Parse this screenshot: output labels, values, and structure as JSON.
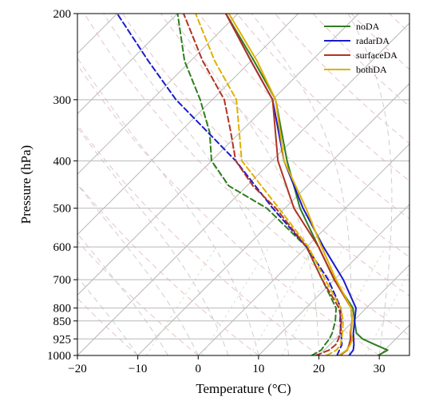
{
  "chart_data": {
    "type": "line",
    "subtype": "skew-T log-p diagram",
    "xlabel": "Temperature (°C)",
    "ylabel": "Pressure (hPa)",
    "x_ticks": [
      -20,
      -10,
      0,
      10,
      20,
      30
    ],
    "y_ticks": [
      200,
      300,
      400,
      500,
      600,
      700,
      800,
      850,
      925,
      1000
    ],
    "xlim": [
      -20,
      35
    ],
    "ylim": [
      1000,
      200
    ],
    "y_scale": "log",
    "skew": "isotherms slanted 45 degrees",
    "grid": true,
    "legend_position": "top-right",
    "background_lines": [
      "isotherms",
      "dry adiabats",
      "moist adiabats",
      "mixing ratio lines"
    ],
    "line_styles": {
      "temperature": "solid",
      "dewpoint": "dashed"
    },
    "series": [
      {
        "name": "noDA",
        "color": "#2f7d1f",
        "temperature": [
          [
            1000,
            29.8
          ],
          [
            975,
            30.5
          ],
          [
            950,
            27.5
          ],
          [
            925,
            24.5
          ],
          [
            900,
            22.5
          ],
          [
            850,
            20.2
          ],
          [
            800,
            17.8
          ],
          [
            700,
            10.0
          ],
          [
            600,
            2.0
          ],
          [
            500,
            -7.5
          ],
          [
            400,
            -17.5
          ],
          [
            300,
            -29.5
          ],
          [
            250,
            -39.5
          ],
          [
            200,
            -52.0
          ]
        ],
        "dewpoint": [
          [
            1000,
            18.8
          ],
          [
            975,
            19.5
          ],
          [
            950,
            19.2
          ],
          [
            925,
            19.0
          ],
          [
            900,
            18.5
          ],
          [
            850,
            17.0
          ],
          [
            800,
            15.0
          ],
          [
            700,
            8.0
          ],
          [
            600,
            0.0
          ],
          [
            500,
            -13.0
          ],
          [
            450,
            -23.0
          ],
          [
            400,
            -30.0
          ],
          [
            350,
            -35.0
          ],
          [
            300,
            -42.0
          ],
          [
            250,
            -51.0
          ],
          [
            200,
            -60.0
          ]
        ]
      },
      {
        "name": "radarDA",
        "color": "#1a1acc",
        "temperature": [
          [
            1000,
            25.0
          ],
          [
            975,
            24.8
          ],
          [
            950,
            24.0
          ],
          [
            925,
            23.0
          ],
          [
            900,
            22.0
          ],
          [
            850,
            20.2
          ],
          [
            800,
            18.3
          ],
          [
            700,
            11.5
          ],
          [
            600,
            2.8
          ],
          [
            500,
            -7.0
          ],
          [
            400,
            -18.0
          ],
          [
            300,
            -30.0
          ],
          [
            250,
            -40.0
          ],
          [
            200,
            -52.0
          ]
        ],
        "dewpoint": [
          [
            1000,
            23.0
          ],
          [
            975,
            22.5
          ],
          [
            950,
            22.0
          ],
          [
            925,
            21.0
          ],
          [
            900,
            20.0
          ],
          [
            850,
            17.8
          ],
          [
            800,
            15.8
          ],
          [
            700,
            9.0
          ],
          [
            600,
            0.0
          ],
          [
            500,
            -12.0
          ],
          [
            400,
            -26.0
          ],
          [
            300,
            -46.0
          ],
          [
            250,
            -57.0
          ],
          [
            200,
            -70.0
          ]
        ]
      },
      {
        "name": "surfaceDA",
        "color": "#b23222",
        "temperature": [
          [
            1000,
            23.5
          ],
          [
            975,
            23.8
          ],
          [
            950,
            23.2
          ],
          [
            925,
            22.5
          ],
          [
            900,
            21.5
          ],
          [
            850,
            19.8
          ],
          [
            800,
            17.5
          ],
          [
            700,
            10.0
          ],
          [
            600,
            2.0
          ],
          [
            500,
            -8.5
          ],
          [
            400,
            -19.0
          ],
          [
            300,
            -30.0
          ],
          [
            250,
            -40.0
          ],
          [
            200,
            -52.0
          ]
        ],
        "dewpoint": [
          [
            1000,
            19.5
          ],
          [
            975,
            20.8
          ],
          [
            950,
            21.0
          ],
          [
            925,
            20.5
          ],
          [
            900,
            19.8
          ],
          [
            850,
            18.0
          ],
          [
            800,
            15.5
          ],
          [
            700,
            8.0
          ],
          [
            600,
            0.0
          ],
          [
            500,
            -11.5
          ],
          [
            450,
            -19.0
          ],
          [
            400,
            -26.0
          ],
          [
            350,
            -31.5
          ],
          [
            300,
            -38.0
          ],
          [
            250,
            -48.0
          ],
          [
            200,
            -59.0
          ]
        ]
      },
      {
        "name": "bothDA",
        "color": "#e0b000",
        "temperature": [
          [
            1000,
            23.3
          ],
          [
            975,
            23.7
          ],
          [
            950,
            23.4
          ],
          [
            925,
            22.8
          ],
          [
            900,
            21.6
          ],
          [
            850,
            19.8
          ],
          [
            800,
            17.5
          ],
          [
            700,
            10.3
          ],
          [
            600,
            2.5
          ],
          [
            500,
            -6.5
          ],
          [
            400,
            -18.0
          ],
          [
            300,
            -29.5
          ],
          [
            250,
            -39.0
          ],
          [
            200,
            -51.5
          ]
        ],
        "dewpoint": [
          [
            1000,
            21.3
          ],
          [
            975,
            22.0
          ],
          [
            950,
            21.8
          ],
          [
            925,
            21.0
          ],
          [
            900,
            20.2
          ],
          [
            850,
            18.3
          ],
          [
            800,
            15.8
          ],
          [
            700,
            8.5
          ],
          [
            600,
            0.3
          ],
          [
            500,
            -11.0
          ],
          [
            400,
            -25.0
          ],
          [
            300,
            -36.0
          ],
          [
            250,
            -46.0
          ],
          [
            200,
            -57.0
          ]
        ]
      }
    ]
  }
}
